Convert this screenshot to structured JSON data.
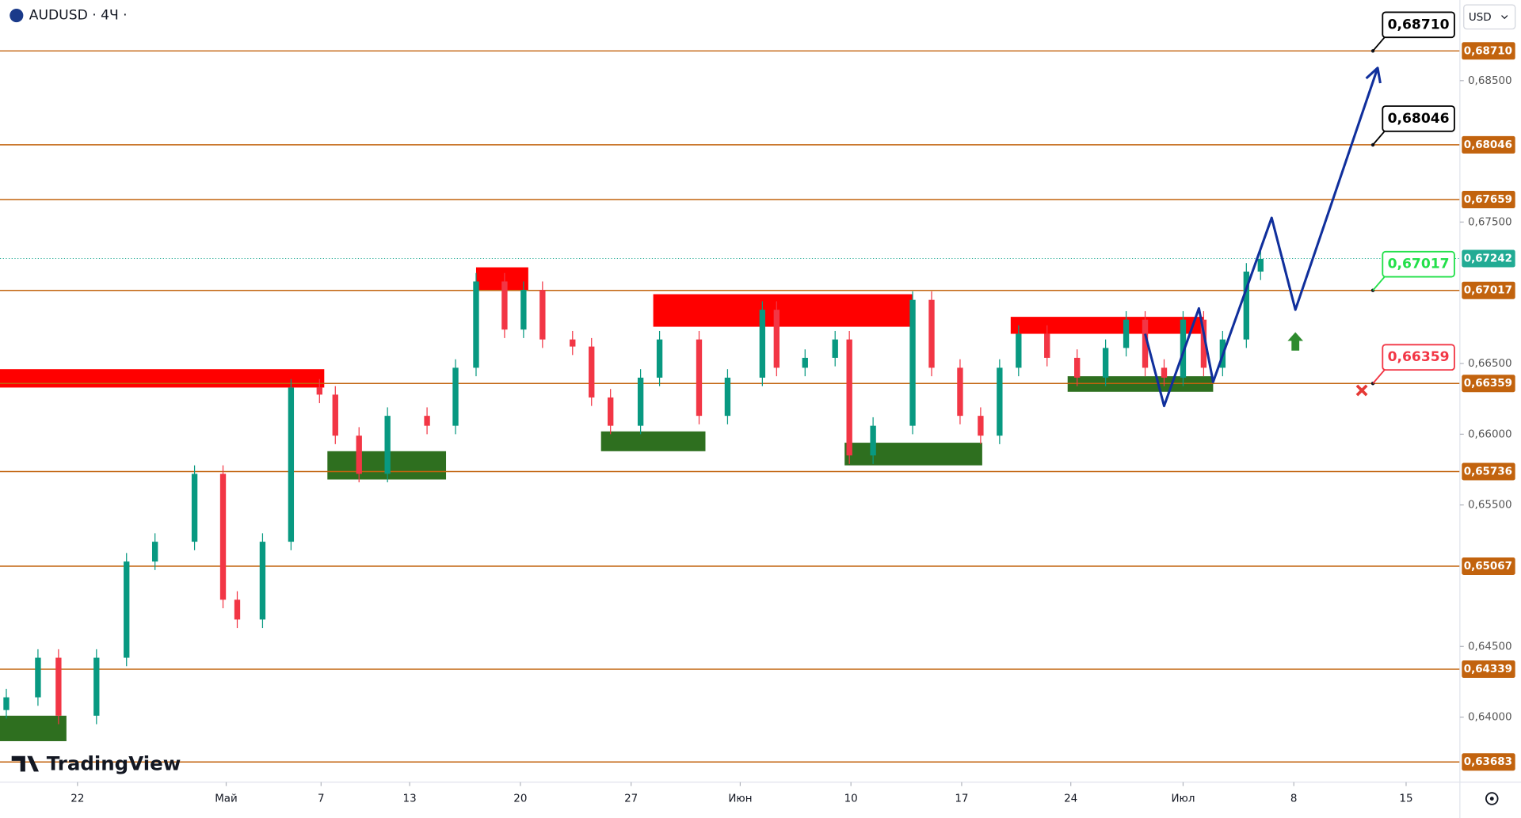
{
  "chart_data": {
    "type": "candlestick",
    "title": "AUDUSD · 4Ч ·",
    "currency": "USD",
    "brand": "TradingView",
    "xlim": [
      -4.9,
      87.4
    ],
    "ylim": [
      0.6354,
      0.6907
    ],
    "xticks": [
      {
        "value": 0,
        "label": "22"
      },
      {
        "value": 9.4,
        "label": "Май"
      },
      {
        "value": 15.4,
        "label": "7"
      },
      {
        "value": 21.0,
        "label": "13"
      },
      {
        "value": 28.0,
        "label": "20"
      },
      {
        "value": 35.0,
        "label": "27"
      },
      {
        "value": 41.9,
        "label": "Июн"
      },
      {
        "value": 48.9,
        "label": "10"
      },
      {
        "value": 55.9,
        "label": "17"
      },
      {
        "value": 62.8,
        "label": "24"
      },
      {
        "value": 69.9,
        "label": "Июл"
      },
      {
        "value": 76.9,
        "label": "8"
      },
      {
        "value": 84.0,
        "label": "15"
      }
    ],
    "yticks": [
      {
        "value": 0.685,
        "label": "0,68500"
      },
      {
        "value": 0.675,
        "label": "0,67500"
      },
      {
        "value": 0.665,
        "label": "0,66500"
      },
      {
        "value": 0.66,
        "label": "0,66000"
      },
      {
        "value": 0.655,
        "label": "0,65500"
      },
      {
        "value": 0.645,
        "label": "0,64500"
      },
      {
        "value": 0.64,
        "label": "0,64000"
      }
    ],
    "up_color": "#089981",
    "down_color": "#f23645",
    "candles": {
      "x": [
        -4.5,
        -2.5,
        -1.2,
        1.2,
        3.1,
        4.9,
        7.4,
        9.2,
        10.1,
        11.7,
        13.5,
        15.3,
        16.3,
        17.8,
        19.6,
        22.1,
        23.9,
        25.2,
        27.0,
        28.2,
        29.4,
        31.3,
        32.5,
        33.7,
        35.6,
        36.8,
        39.3,
        41.1,
        43.3,
        44.2,
        46.0,
        47.9,
        48.8,
        50.3,
        52.8,
        54.0,
        55.8,
        57.1,
        58.3,
        59.5,
        61.3,
        63.2,
        65.0,
        66.3,
        67.5,
        68.7,
        69.9,
        71.2,
        72.4,
        73.9,
        74.8
      ],
      "open": [
        0.6405,
        0.6414,
        0.6442,
        0.6401,
        0.6442,
        0.651,
        0.6524,
        0.6572,
        0.6483,
        0.6469,
        0.6524,
        0.6633,
        0.6628,
        0.6599,
        0.6572,
        0.6613,
        0.6606,
        0.6647,
        0.6708,
        0.6674,
        0.6702,
        0.6667,
        0.6662,
        0.6626,
        0.6606,
        0.664,
        0.6667,
        0.6613,
        0.664,
        0.6688,
        0.6647,
        0.6654,
        0.6667,
        0.6585,
        0.6606,
        0.6695,
        0.6647,
        0.6613,
        0.6599,
        0.6647,
        0.6671,
        0.6654,
        0.664,
        0.6661,
        0.6681,
        0.6647,
        0.664,
        0.6681,
        0.6647,
        0.6667,
        0.6715
      ],
      "high": [
        0.642,
        0.6448,
        0.6448,
        0.6448,
        0.6516,
        0.653,
        0.6578,
        0.6578,
        0.6489,
        0.653,
        0.6639,
        0.6639,
        0.6634,
        0.6605,
        0.6619,
        0.6619,
        0.6653,
        0.6714,
        0.6714,
        0.6708,
        0.6708,
        0.6673,
        0.6668,
        0.6632,
        0.6646,
        0.6673,
        0.6673,
        0.6646,
        0.6694,
        0.6694,
        0.666,
        0.6673,
        0.6673,
        0.6612,
        0.6701,
        0.6701,
        0.6653,
        0.6619,
        0.6653,
        0.6677,
        0.6677,
        0.666,
        0.6667,
        0.6687,
        0.6687,
        0.6653,
        0.6687,
        0.6687,
        0.6673,
        0.6721,
        0.673
      ],
      "low": [
        0.6399,
        0.6408,
        0.6395,
        0.6395,
        0.6436,
        0.6504,
        0.6518,
        0.6477,
        0.6463,
        0.6463,
        0.6518,
        0.6622,
        0.6593,
        0.6566,
        0.6566,
        0.66,
        0.66,
        0.6641,
        0.6668,
        0.6668,
        0.6661,
        0.6656,
        0.662,
        0.66,
        0.66,
        0.6634,
        0.6607,
        0.6607,
        0.6634,
        0.6641,
        0.6641,
        0.6648,
        0.6579,
        0.6579,
        0.66,
        0.6641,
        0.6607,
        0.6593,
        0.6593,
        0.6641,
        0.6648,
        0.6634,
        0.6634,
        0.6655,
        0.6641,
        0.6634,
        0.6634,
        0.6641,
        0.6641,
        0.6661,
        0.6709
      ],
      "close": [
        0.6414,
        0.6442,
        0.6401,
        0.6442,
        0.651,
        0.6524,
        0.6572,
        0.6483,
        0.6469,
        0.6524,
        0.6633,
        0.6628,
        0.6599,
        0.6572,
        0.6613,
        0.6606,
        0.6647,
        0.6708,
        0.6674,
        0.6702,
        0.6667,
        0.6662,
        0.6626,
        0.6606,
        0.664,
        0.6667,
        0.6613,
        0.664,
        0.6688,
        0.6647,
        0.6654,
        0.6667,
        0.6585,
        0.6606,
        0.6695,
        0.6647,
        0.6613,
        0.6599,
        0.6647,
        0.6671,
        0.6654,
        0.664,
        0.6661,
        0.6681,
        0.6647,
        0.664,
        0.6681,
        0.6647,
        0.6667,
        0.6715,
        0.6724
      ]
    },
    "level_color": "#c2630e",
    "levels": [
      {
        "value": 0.6871,
        "label": "0,68710",
        "callout": "#000000"
      },
      {
        "value": 0.68046,
        "label": "0,68046",
        "callout": "#000000"
      },
      {
        "value": 0.67659,
        "label": "0,67659"
      },
      {
        "value": 0.67017,
        "label": "0,67017",
        "callout": "#22e04a"
      },
      {
        "value": 0.66359,
        "label": "0,66359",
        "callout": "#f23645"
      },
      {
        "value": 0.65736,
        "label": "0,65736"
      },
      {
        "value": 0.65067,
        "label": "0,65067"
      },
      {
        "value": 0.64339,
        "label": "0,64339"
      },
      {
        "value": 0.63683,
        "label": "0,63683"
      }
    ],
    "callout_x": 81.9,
    "last": {
      "value": 0.67242,
      "label": "0,67242",
      "color": "#22ab94"
    },
    "zones": [
      {
        "x": [
          -4.9,
          15.6
        ],
        "y": [
          0.6633,
          0.6646
        ],
        "color": "#ff0000"
      },
      {
        "x": [
          25.2,
          28.5
        ],
        "y": [
          0.6702,
          0.6718
        ],
        "color": "#ff0000"
      },
      {
        "x": [
          36.4,
          52.8
        ],
        "y": [
          0.6676,
          0.6699
        ],
        "color": "#ff0000"
      },
      {
        "x": [
          59.0,
          71.2
        ],
        "y": [
          0.6671,
          0.6683
        ],
        "color": "#ff0000"
      },
      {
        "x": [
          -4.9,
          -0.7
        ],
        "y": [
          0.6383,
          0.6401
        ],
        "color": "#2e6f1f"
      },
      {
        "x": [
          15.8,
          23.3
        ],
        "y": [
          0.6568,
          0.6588
        ],
        "color": "#2e6f1f"
      },
      {
        "x": [
          33.1,
          39.7
        ],
        "y": [
          0.6588,
          0.6602
        ],
        "color": "#2e6f1f"
      },
      {
        "x": [
          48.5,
          57.2
        ],
        "y": [
          0.6578,
          0.6594
        ],
        "color": "#2e6f1f"
      },
      {
        "x": [
          62.6,
          71.8
        ],
        "y": [
          0.663,
          0.6641
        ],
        "color": "#2e6f1f"
      }
    ],
    "projection": {
      "color": "#102f9c",
      "x": [
        67.5,
        68.7,
        70.9,
        71.8,
        75.5,
        77.0,
        82.2
      ],
      "values": [
        0.6671,
        0.662,
        0.6689,
        0.6637,
        0.6753,
        0.6688,
        0.6859
      ]
    },
    "signals": [
      {
        "type": "buy",
        "x": 77.0,
        "value": 0.6666,
        "color": "#2e8b2e"
      },
      {
        "type": "stop",
        "x": 81.2,
        "value": 0.6631,
        "color": "#e53935"
      }
    ]
  }
}
